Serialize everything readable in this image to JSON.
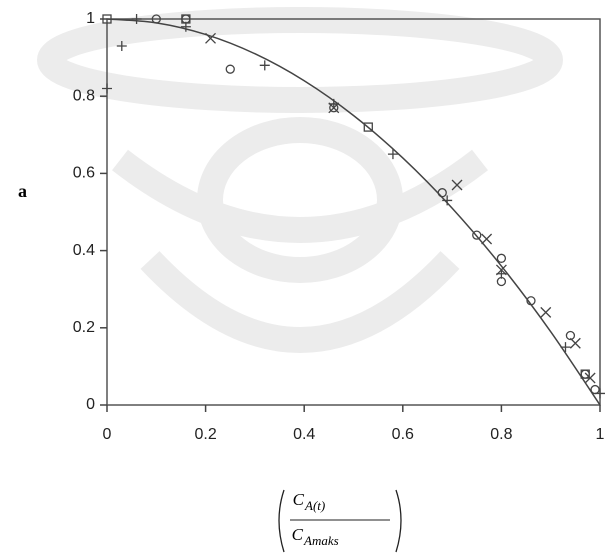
{
  "chart_data": {
    "type": "scatter",
    "y_label": "a",
    "x_label": {
      "numerator": {
        "base": "C",
        "sub": "A(t)"
      },
      "denominator": {
        "base": "C",
        "sub": "Amaks"
      }
    },
    "xlim": [
      0,
      1
    ],
    "ylim": [
      0,
      1
    ],
    "xticks": [
      0,
      0.2,
      0.4,
      0.6,
      0.8,
      1
    ],
    "yticks": [
      0,
      0.2,
      0.4,
      0.6,
      0.8,
      1
    ],
    "series": [
      {
        "marker": "circle",
        "color": "#444",
        "x": [
          0.1,
          0.16,
          0.25,
          0.46,
          0.68,
          0.75,
          0.8,
          0.8,
          0.86,
          0.94,
          0.97,
          0.99
        ],
        "values": [
          1,
          1,
          0.87,
          0.77,
          0.55,
          0.44,
          0.38,
          0.32,
          0.27,
          0.18,
          0.08,
          0.04
        ]
      },
      {
        "marker": "plus",
        "color": "#444",
        "x": [
          0,
          0.03,
          0.06,
          0.16,
          0.32,
          0.46,
          0.58,
          0.69,
          0.8,
          0.93,
          1
        ],
        "values": [
          0.82,
          0.93,
          1,
          0.98,
          0.88,
          0.78,
          0.65,
          0.53,
          0.34,
          0.15,
          0.03
        ]
      },
      {
        "marker": "cross",
        "color": "#444",
        "x": [
          0.21,
          0.46,
          0.71,
          0.77,
          0.8,
          0.89,
          0.95,
          0.98
        ],
        "values": [
          0.95,
          0.77,
          0.57,
          0.43,
          0.35,
          0.24,
          0.16,
          0.07
        ]
      },
      {
        "marker": "square",
        "color": "#444",
        "x": [
          0,
          0.16,
          0.53,
          0.97
        ],
        "values": [
          1,
          1,
          0.72,
          0.08
        ]
      },
      {
        "marker": "line",
        "color": "#444",
        "x": [
          0,
          0.1,
          0.2,
          0.3,
          0.4,
          0.5,
          0.6,
          0.7,
          0.8,
          0.9,
          1
        ],
        "values": [
          1,
          0.99,
          0.96,
          0.91,
          0.84,
          0.75,
          0.64,
          0.51,
          0.36,
          0.19,
          0
        ]
      }
    ]
  }
}
